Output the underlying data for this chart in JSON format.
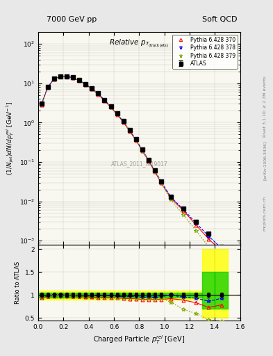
{
  "title_left": "7000 GeV pp",
  "title_right": "Soft QCD",
  "plot_title": "Relative p_{T (track jets)}",
  "xlabel": "Charged Particle p_{T}^{rel} [GeV]",
  "ylabel_main": "(1/N_{jet})dN/dp_{T}^{rel} [GeV^{-1}]",
  "ylabel_ratio": "Ratio to ATLAS",
  "watermark": "ATLAS_2011_I919017",
  "right_label": "Rivet 3.1.10; ≥ 2.7M events",
  "arxiv_label": "[arXiv:1306.3436]",
  "mcplots_label": "mcplots.cern.ch",
  "atlas_x": [
    0.025,
    0.075,
    0.125,
    0.175,
    0.225,
    0.275,
    0.325,
    0.375,
    0.425,
    0.475,
    0.525,
    0.575,
    0.625,
    0.675,
    0.725,
    0.775,
    0.825,
    0.875,
    0.925,
    0.975,
    1.05,
    1.15,
    1.25,
    1.35,
    1.45
  ],
  "atlas_y": [
    3.0,
    8.0,
    13.0,
    15.0,
    15.0,
    14.0,
    12.0,
    9.5,
    7.5,
    5.5,
    3.8,
    2.6,
    1.7,
    1.1,
    0.65,
    0.38,
    0.21,
    0.115,
    0.062,
    0.032,
    0.013,
    0.0065,
    0.003,
    0.0015,
    0.0007
  ],
  "atlas_yerr": [
    0.15,
    0.4,
    0.65,
    0.75,
    0.75,
    0.7,
    0.6,
    0.475,
    0.375,
    0.275,
    0.19,
    0.13,
    0.085,
    0.055,
    0.0325,
    0.019,
    0.0105,
    0.00575,
    0.0031,
    0.0016,
    0.00065,
    0.000325,
    0.00015,
    7.5e-05,
    3.5e-05
  ],
  "py370_x": [
    0.025,
    0.075,
    0.125,
    0.175,
    0.225,
    0.275,
    0.325,
    0.375,
    0.425,
    0.475,
    0.525,
    0.575,
    0.625,
    0.675,
    0.725,
    0.775,
    0.825,
    0.875,
    0.925,
    0.975,
    1.05,
    1.15,
    1.25,
    1.35,
    1.45
  ],
  "py370_y": [
    2.85,
    7.8,
    12.8,
    14.8,
    14.9,
    13.7,
    11.7,
    9.2,
    7.2,
    5.2,
    3.6,
    2.45,
    1.6,
    1.02,
    0.6,
    0.35,
    0.19,
    0.104,
    0.056,
    0.029,
    0.012,
    0.0058,
    0.0025,
    0.0011,
    0.00055
  ],
  "py378_x": [
    0.025,
    0.075,
    0.125,
    0.175,
    0.225,
    0.275,
    0.325,
    0.375,
    0.425,
    0.475,
    0.525,
    0.575,
    0.625,
    0.675,
    0.725,
    0.775,
    0.825,
    0.875,
    0.925,
    0.975,
    1.05,
    1.15,
    1.25,
    1.35,
    1.45
  ],
  "py378_y": [
    2.9,
    7.9,
    13.0,
    15.0,
    15.1,
    13.9,
    11.9,
    9.4,
    7.4,
    5.4,
    3.75,
    2.55,
    1.65,
    1.06,
    0.63,
    0.37,
    0.2,
    0.11,
    0.059,
    0.031,
    0.013,
    0.0062,
    0.0028,
    0.0013,
    0.00065
  ],
  "py379_x": [
    0.025,
    0.075,
    0.125,
    0.175,
    0.225,
    0.275,
    0.325,
    0.375,
    0.425,
    0.475,
    0.525,
    0.575,
    0.625,
    0.675,
    0.725,
    0.775,
    0.825,
    0.875,
    0.925,
    0.975,
    1.05,
    1.15,
    1.25,
    1.35,
    1.45
  ],
  "py379_y": [
    2.9,
    7.85,
    12.9,
    14.9,
    15.0,
    13.8,
    11.8,
    9.3,
    7.3,
    5.3,
    3.65,
    2.5,
    1.62,
    1.04,
    0.61,
    0.355,
    0.195,
    0.107,
    0.057,
    0.03,
    0.011,
    0.0045,
    0.0018,
    0.0007,
    0.0003
  ],
  "band_yellow_lo": [
    0.9,
    0.9,
    0.9,
    0.9,
    0.9,
    0.9,
    0.9,
    0.9,
    0.9,
    0.9,
    0.9,
    0.9,
    0.9,
    0.9,
    0.9,
    0.9,
    0.9,
    0.9,
    0.9,
    0.9,
    0.9,
    0.9,
    0.9,
    0.5,
    0.5
  ],
  "band_yellow_hi": [
    1.1,
    1.1,
    1.1,
    1.1,
    1.1,
    1.1,
    1.1,
    1.1,
    1.1,
    1.1,
    1.1,
    1.1,
    1.1,
    1.1,
    1.1,
    1.1,
    1.1,
    1.1,
    1.1,
    1.1,
    1.1,
    1.1,
    1.1,
    2.0,
    2.0
  ],
  "band_green_lo": [
    0.95,
    0.95,
    0.95,
    0.95,
    0.95,
    0.95,
    0.95,
    0.95,
    0.95,
    0.95,
    0.95,
    0.95,
    0.95,
    0.95,
    0.95,
    0.95,
    0.95,
    0.95,
    0.95,
    0.95,
    0.95,
    0.95,
    0.95,
    0.7,
    0.7
  ],
  "band_green_hi": [
    1.05,
    1.05,
    1.05,
    1.05,
    1.05,
    1.05,
    1.05,
    1.05,
    1.05,
    1.05,
    1.05,
    1.05,
    1.05,
    1.05,
    1.05,
    1.05,
    1.05,
    1.05,
    1.05,
    1.05,
    1.05,
    1.05,
    1.05,
    1.5,
    1.5
  ],
  "color_atlas": "#000000",
  "color_py370": "#ff0000",
  "color_py378": "#0000ff",
  "color_py379": "#80aa00",
  "bg_color": "#f0f0f0",
  "ylim_main": [
    0.0008,
    200
  ],
  "ylim_ratio": [
    0.45,
    2.1
  ],
  "xlim": [
    0.0,
    1.6
  ]
}
